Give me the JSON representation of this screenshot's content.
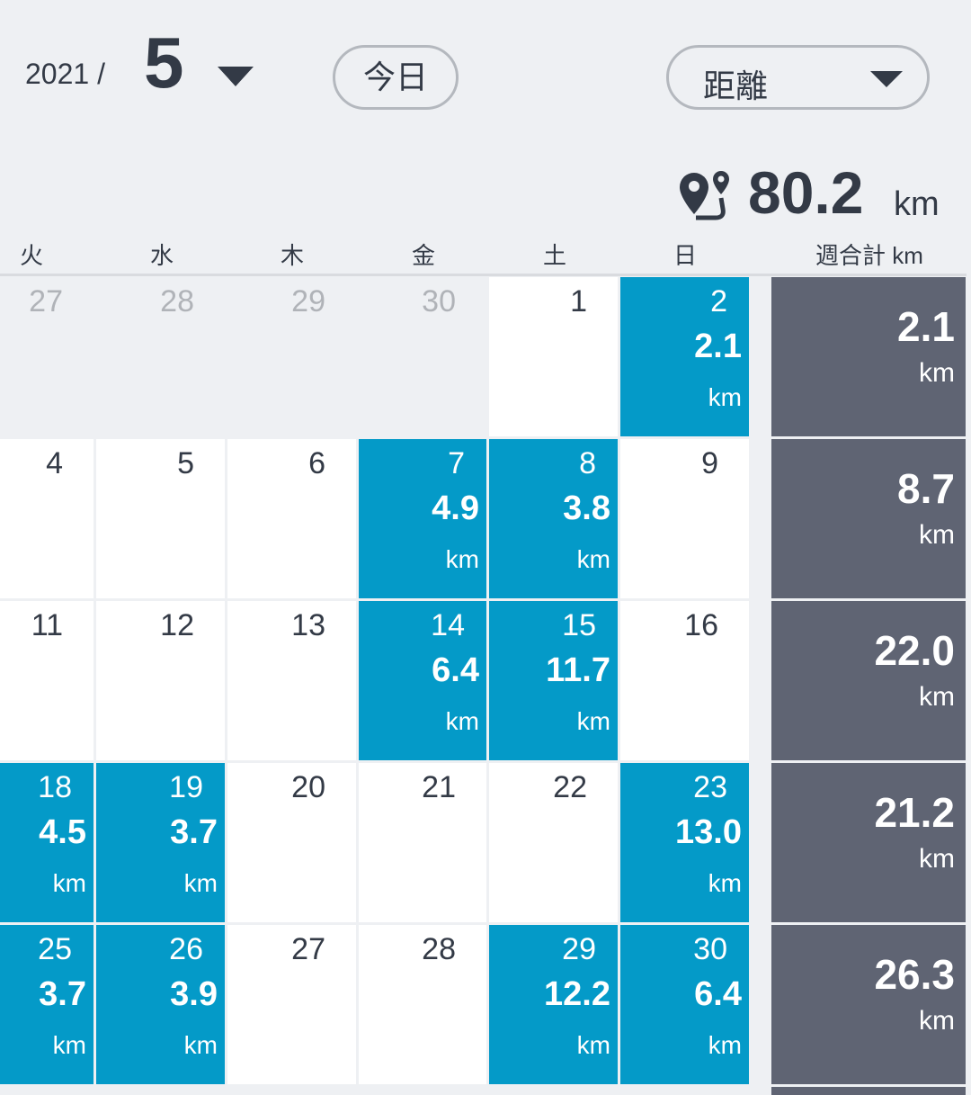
{
  "header": {
    "year": "2021 /",
    "month": "5",
    "today_button": "今日",
    "metric_select": "距離"
  },
  "summary": {
    "total": "80.2",
    "unit": "km"
  },
  "calendar": {
    "weekdays": [
      "火",
      "水",
      "木",
      "金",
      "土",
      "日"
    ],
    "week_total_header": "週合計 km",
    "unit": "km",
    "leading_days": [
      27,
      28,
      29,
      30
    ],
    "weeks": [
      {
        "days": [
          {
            "day": 1
          },
          {
            "day": 2,
            "distance": "2.1"
          }
        ],
        "total": "2.1"
      },
      {
        "days": [
          {
            "day": 4
          },
          {
            "day": 5
          },
          {
            "day": 6
          },
          {
            "day": 7,
            "distance": "4.9"
          },
          {
            "day": 8,
            "distance": "3.8"
          },
          {
            "day": 9
          }
        ],
        "total": "8.7"
      },
      {
        "days": [
          {
            "day": 11
          },
          {
            "day": 12
          },
          {
            "day": 13
          },
          {
            "day": 14,
            "distance": "6.4"
          },
          {
            "day": 15,
            "distance": "11.7"
          },
          {
            "day": 16
          }
        ],
        "total": "22.0"
      },
      {
        "days": [
          {
            "day": 18,
            "distance": "4.5"
          },
          {
            "day": 19,
            "distance": "3.7"
          },
          {
            "day": 20
          },
          {
            "day": 21
          },
          {
            "day": 22
          },
          {
            "day": 23,
            "distance": "13.0"
          }
        ],
        "total": "21.2"
      },
      {
        "days": [
          {
            "day": 25,
            "distance": "3.7"
          },
          {
            "day": 26,
            "distance": "3.9"
          },
          {
            "day": 27
          },
          {
            "day": 28
          },
          {
            "day": 29,
            "distance": "12.2"
          },
          {
            "day": 30,
            "distance": "6.4"
          }
        ],
        "total": "26.3"
      }
    ]
  }
}
